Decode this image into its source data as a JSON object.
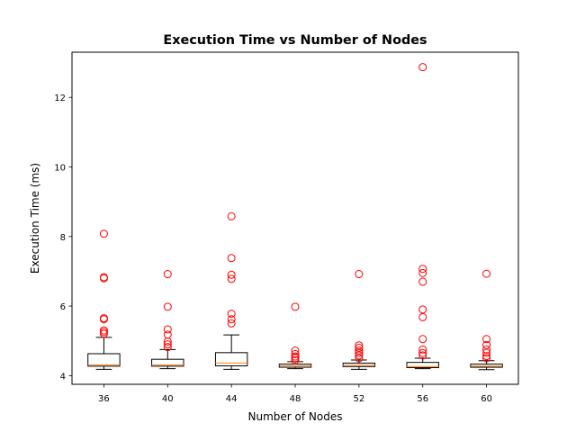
{
  "chart_data": {
    "type": "box",
    "title": "Execution Time vs Number of Nodes",
    "xlabel": "Number of Nodes",
    "ylabel": "Execution Time (ms)",
    "categories": [
      "36",
      "40",
      "44",
      "48",
      "52",
      "56",
      "60"
    ],
    "ylim": [
      3.75,
      13.3
    ],
    "yticks": [
      4,
      6,
      8,
      10,
      12
    ],
    "grid": false,
    "colors": {
      "box": "#000000",
      "median": "#ff7f0e",
      "outlier": "#ff0000"
    },
    "boxes": [
      {
        "category": "36",
        "whisker_low": 4.18,
        "q1": 4.27,
        "median": 4.31,
        "q3": 4.63,
        "whisker_high": 5.1,
        "outliers": [
          5.2,
          5.25,
          5.3,
          5.62,
          5.65,
          6.8,
          6.83,
          8.08
        ]
      },
      {
        "category": "40",
        "whisker_low": 4.2,
        "q1": 4.27,
        "median": 4.31,
        "q3": 4.47,
        "whisker_high": 4.75,
        "outliers": [
          4.82,
          4.9,
          4.98,
          5.18,
          5.33,
          5.98,
          6.92
        ]
      },
      {
        "category": "44",
        "whisker_low": 4.18,
        "q1": 4.28,
        "median": 4.36,
        "q3": 4.66,
        "whisker_high": 5.17,
        "outliers": [
          5.5,
          5.62,
          5.78,
          6.78,
          6.9,
          7.38,
          8.58
        ]
      },
      {
        "category": "48",
        "whisker_low": 4.2,
        "q1": 4.24,
        "median": 4.28,
        "q3": 4.33,
        "whisker_high": 4.4,
        "outliers": [
          4.44,
          4.5,
          4.55,
          4.62,
          4.72,
          5.98
        ]
      },
      {
        "category": "52",
        "whisker_low": 4.18,
        "q1": 4.26,
        "median": 4.3,
        "q3": 4.36,
        "whisker_high": 4.45,
        "outliers": [
          4.5,
          4.58,
          4.65,
          4.72,
          4.8,
          4.87,
          6.92
        ]
      },
      {
        "category": "56",
        "whisker_low": 4.2,
        "q1": 4.23,
        "median": 4.26,
        "q3": 4.38,
        "whisker_high": 4.5,
        "outliers": [
          4.58,
          4.65,
          4.75,
          5.05,
          5.68,
          5.9,
          6.7,
          6.95,
          7.07,
          12.87
        ]
      },
      {
        "category": "60",
        "whisker_low": 4.17,
        "q1": 4.24,
        "median": 4.27,
        "q3": 4.33,
        "whisker_high": 4.43,
        "outliers": [
          4.5,
          4.56,
          4.66,
          4.75,
          4.88,
          5.05,
          6.93
        ]
      }
    ]
  }
}
